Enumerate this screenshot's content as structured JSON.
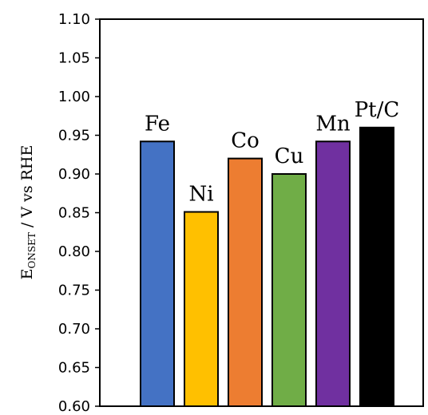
{
  "chart_data": {
    "type": "bar",
    "categories": [
      "Fe",
      "Ni",
      "Co",
      "Cu",
      "Mn",
      "Pt/C"
    ],
    "values": [
      0.942,
      0.851,
      0.92,
      0.9,
      0.942,
      0.96
    ],
    "colors": [
      "#4472C4",
      "#FFC000",
      "#ED7D31",
      "#70AD47",
      "#7030A0",
      "#000000"
    ],
    "ylabel": {
      "prefix": "E",
      "subscript": "ONSET",
      "suffix": " / V vs RHE"
    },
    "ylim": [
      0.6,
      1.1
    ],
    "yticks": [
      "0.60",
      "0.65",
      "0.70",
      "0.75",
      "0.80",
      "0.85",
      "0.90",
      "0.95",
      "1.00",
      "1.05",
      "1.10"
    ],
    "grid": false,
    "legend": "none"
  }
}
